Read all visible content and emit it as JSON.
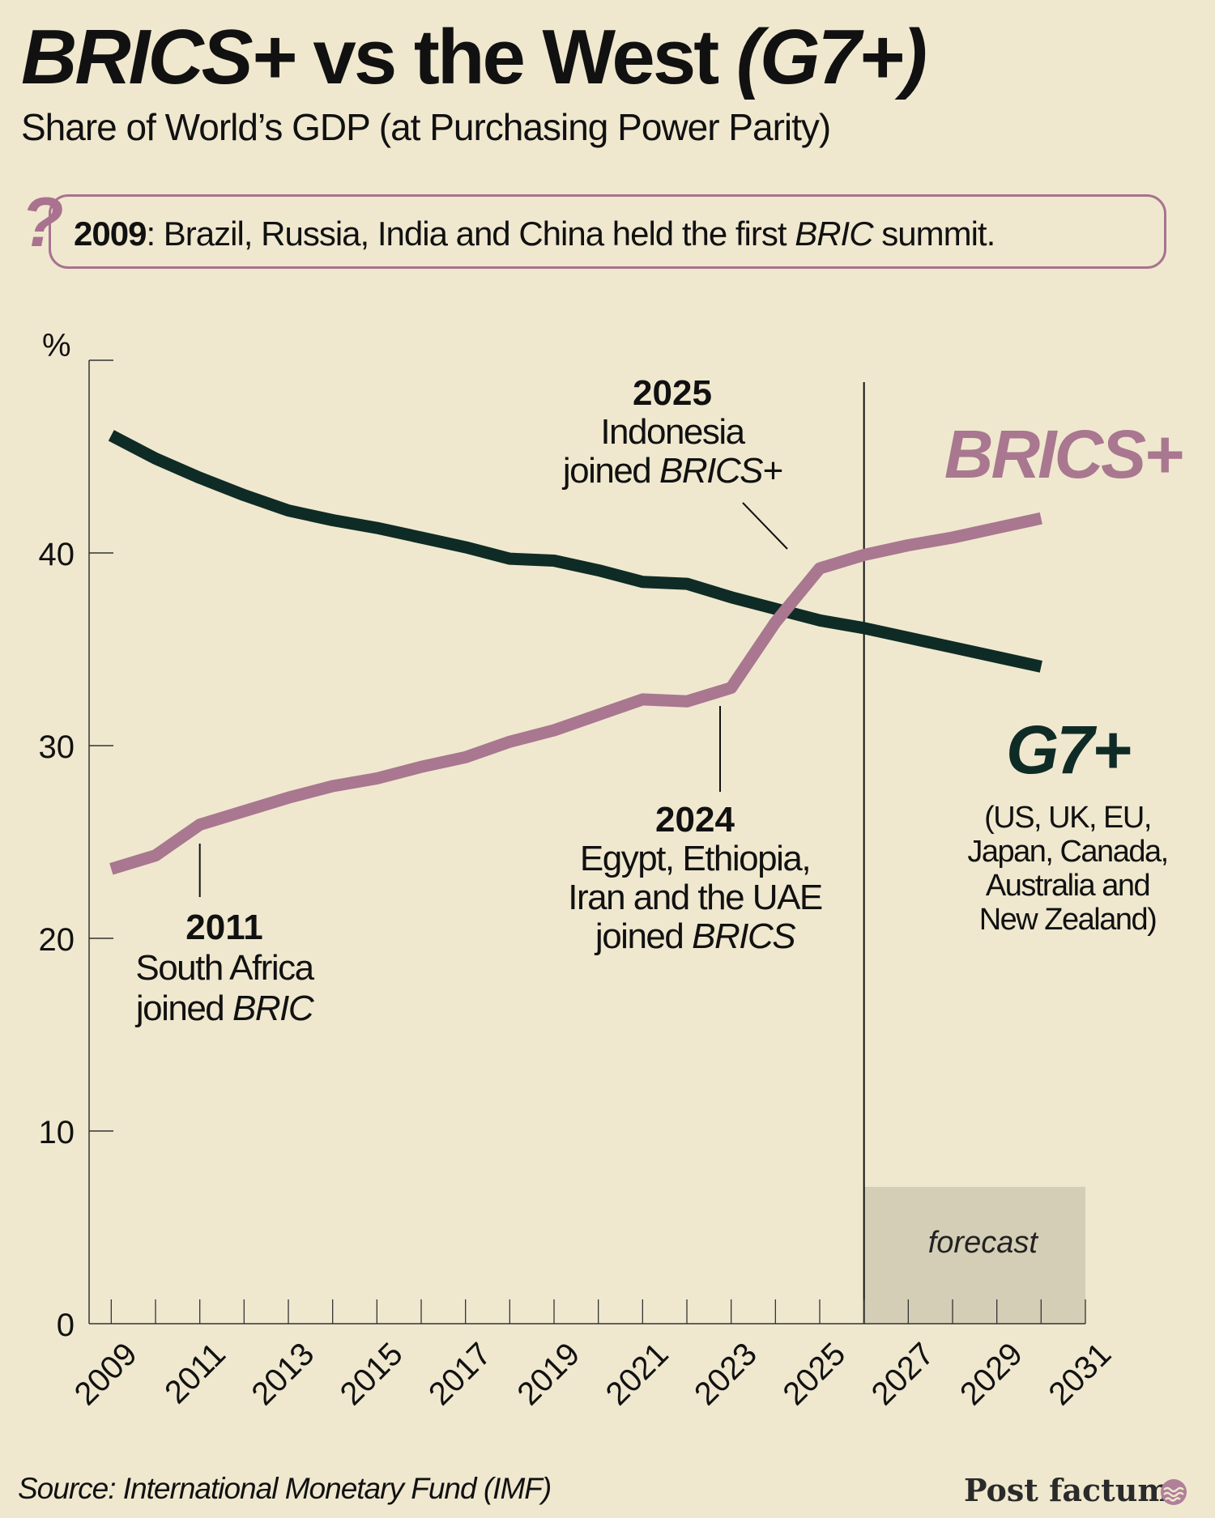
{
  "header": {
    "title_a": "BRICS+",
    "title_b": " vs the West ",
    "title_c": "(G7+)",
    "subtitle": "Share of World’s GDP (at Purchasing Power Parity)"
  },
  "note": {
    "icon": "question-mark-icon",
    "icon_glyph": "?",
    "year": "2009",
    "text_a": ": Brazil, Russia, India and China held the first ",
    "text_italic": "BRIC",
    "text_b": " summit."
  },
  "chart_data": {
    "type": "line",
    "ylabel": "%",
    "ylim": [
      0,
      50
    ],
    "yticks": [
      0,
      10,
      20,
      30,
      40
    ],
    "xlim": [
      2008.5,
      2031
    ],
    "xticks": [
      2009,
      2011,
      2013,
      2015,
      2017,
      2019,
      2021,
      2023,
      2025,
      2027,
      2029,
      2031
    ],
    "forecast_start": 2026,
    "forecast_label": "forecast",
    "series": [
      {
        "name": "G7+",
        "color": "#0f2b25",
        "x": [
          2009,
          2010,
          2011,
          2012,
          2013,
          2014,
          2015,
          2016,
          2017,
          2018,
          2019,
          2020,
          2021,
          2022,
          2023,
          2024,
          2025,
          2026,
          2027,
          2028,
          2029,
          2030
        ],
        "values": [
          46.1,
          44.9,
          43.9,
          43.0,
          42.2,
          41.7,
          41.3,
          40.8,
          40.3,
          39.7,
          39.6,
          39.1,
          38.5,
          38.4,
          37.7,
          37.1,
          36.5,
          36.1,
          35.6,
          35.1,
          34.6,
          34.1
        ]
      },
      {
        "name": "BRICS+",
        "color": "#a9778f",
        "x": [
          2009,
          2010,
          2011,
          2012,
          2013,
          2014,
          2015,
          2016,
          2017,
          2018,
          2019,
          2020,
          2021,
          2022,
          2023,
          2024,
          2025,
          2026,
          2027,
          2028,
          2029,
          2030
        ],
        "values": [
          23.6,
          24.3,
          25.9,
          26.6,
          27.3,
          27.9,
          28.3,
          28.9,
          29.4,
          30.2,
          30.8,
          31.6,
          32.4,
          32.3,
          33.0,
          36.4,
          39.2,
          39.9,
          40.4,
          40.8,
          41.3,
          41.8
        ]
      }
    ],
    "series_labels": {
      "brics": "BRICS+",
      "g7": "G7+",
      "g7_members": [
        "(US, UK, EU,",
        "Japan, Canada,",
        "Australia and",
        "New Zealand)"
      ]
    },
    "annotations": [
      {
        "id": "a2011",
        "x": 2011,
        "year": "2011",
        "lines": [
          "South Africa"
        ],
        "last_plain": "joined ",
        "last_italic": "BRIC"
      },
      {
        "id": "a2024",
        "x": 2023,
        "year": "2024",
        "lines": [
          "Egypt, Ethiopia,",
          "Iran and the UAE"
        ],
        "last_plain": "joined ",
        "last_italic": "BRICS"
      },
      {
        "id": "a2025",
        "x": 2024,
        "year": "2025",
        "lines": [
          "Indonesia"
        ],
        "last_plain": "joined ",
        "last_italic": "BRICS+"
      }
    ]
  },
  "footer": {
    "source": "Source: International Monetary Fund (IMF)",
    "brand": "Post factum",
    "brand_icon": "wave-logo-icon"
  }
}
